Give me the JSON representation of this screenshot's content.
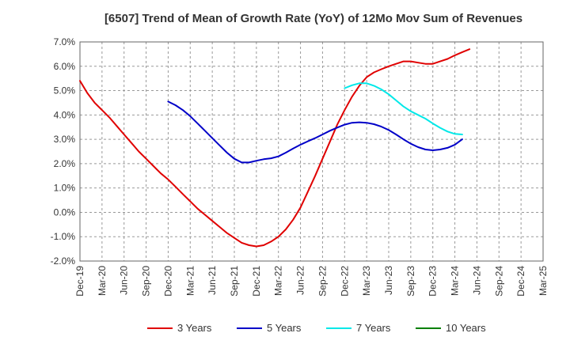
{
  "chart_data": {
    "type": "line",
    "title": "[6507]  Trend of Mean of Growth Rate (YoY) of 12Mo Mov Sum of Revenues",
    "xlabel": "",
    "ylabel": "",
    "ylim": [
      -2.0,
      7.0
    ],
    "yticks": [
      -2.0,
      -1.0,
      0.0,
      1.0,
      2.0,
      3.0,
      4.0,
      5.0,
      6.0,
      7.0
    ],
    "ytick_labels": [
      "-2.0%",
      "-1.0%",
      "0.0%",
      "1.0%",
      "2.0%",
      "3.0%",
      "4.0%",
      "5.0%",
      "6.0%",
      "7.0%"
    ],
    "x_range_months": [
      0,
      63
    ],
    "x_ticks": [
      {
        "m": 0,
        "label": "Dec-19"
      },
      {
        "m": 3,
        "label": "Mar-20"
      },
      {
        "m": 6,
        "label": "Jun-20"
      },
      {
        "m": 9,
        "label": "Sep-20"
      },
      {
        "m": 12,
        "label": "Dec-20"
      },
      {
        "m": 15,
        "label": "Mar-21"
      },
      {
        "m": 18,
        "label": "Jun-21"
      },
      {
        "m": 21,
        "label": "Sep-21"
      },
      {
        "m": 24,
        "label": "Dec-21"
      },
      {
        "m": 27,
        "label": "Mar-22"
      },
      {
        "m": 30,
        "label": "Jun-22"
      },
      {
        "m": 33,
        "label": "Sep-22"
      },
      {
        "m": 36,
        "label": "Dec-22"
      },
      {
        "m": 39,
        "label": "Mar-23"
      },
      {
        "m": 42,
        "label": "Jun-23"
      },
      {
        "m": 45,
        "label": "Sep-23"
      },
      {
        "m": 48,
        "label": "Dec-23"
      },
      {
        "m": 51,
        "label": "Mar-24"
      },
      {
        "m": 54,
        "label": "Jun-24"
      },
      {
        "m": 57,
        "label": "Sep-24"
      },
      {
        "m": 60,
        "label": "Dec-24"
      },
      {
        "m": 63,
        "label": "Mar-25"
      }
    ],
    "grid": true,
    "legend_position": "bottom",
    "series": [
      {
        "name": "3 Years",
        "color": "#e00000",
        "points": [
          [
            0,
            5.4
          ],
          [
            1,
            4.9
          ],
          [
            2,
            4.5
          ],
          [
            3,
            4.2
          ],
          [
            4,
            3.9
          ],
          [
            5,
            3.55
          ],
          [
            6,
            3.2
          ],
          [
            7,
            2.85
          ],
          [
            8,
            2.5
          ],
          [
            9,
            2.2
          ],
          [
            10,
            1.9
          ],
          [
            11,
            1.6
          ],
          [
            12,
            1.35
          ],
          [
            13,
            1.05
          ],
          [
            14,
            0.75
          ],
          [
            15,
            0.45
          ],
          [
            16,
            0.15
          ],
          [
            17,
            -0.1
          ],
          [
            18,
            -0.35
          ],
          [
            19,
            -0.6
          ],
          [
            20,
            -0.85
          ],
          [
            21,
            -1.05
          ],
          [
            22,
            -1.25
          ],
          [
            23,
            -1.35
          ],
          [
            24,
            -1.4
          ],
          [
            25,
            -1.35
          ],
          [
            26,
            -1.2
          ],
          [
            27,
            -1.0
          ],
          [
            28,
            -0.7
          ],
          [
            29,
            -0.3
          ],
          [
            30,
            0.2
          ],
          [
            31,
            0.85
          ],
          [
            32,
            1.5
          ],
          [
            33,
            2.2
          ],
          [
            34,
            2.9
          ],
          [
            35,
            3.6
          ],
          [
            36,
            4.2
          ],
          [
            37,
            4.75
          ],
          [
            38,
            5.2
          ],
          [
            39,
            5.55
          ],
          [
            40,
            5.75
          ],
          [
            41,
            5.88
          ],
          [
            42,
            6.0
          ],
          [
            43,
            6.1
          ],
          [
            44,
            6.2
          ],
          [
            45,
            6.2
          ],
          [
            46,
            6.15
          ],
          [
            47,
            6.1
          ],
          [
            48,
            6.1
          ],
          [
            49,
            6.2
          ],
          [
            50,
            6.3
          ],
          [
            51,
            6.45
          ],
          [
            52,
            6.58
          ],
          [
            53,
            6.7
          ]
        ]
      },
      {
        "name": "5 Years",
        "color": "#0000c8",
        "points": [
          [
            12,
            4.55
          ],
          [
            13,
            4.4
          ],
          [
            14,
            4.2
          ],
          [
            15,
            3.95
          ],
          [
            16,
            3.65
          ],
          [
            17,
            3.35
          ],
          [
            18,
            3.05
          ],
          [
            19,
            2.75
          ],
          [
            20,
            2.45
          ],
          [
            21,
            2.2
          ],
          [
            22,
            2.05
          ],
          [
            23,
            2.05
          ],
          [
            24,
            2.12
          ],
          [
            25,
            2.18
          ],
          [
            26,
            2.22
          ],
          [
            27,
            2.3
          ],
          [
            28,
            2.45
          ],
          [
            29,
            2.62
          ],
          [
            30,
            2.78
          ],
          [
            31,
            2.92
          ],
          [
            32,
            3.05
          ],
          [
            33,
            3.2
          ],
          [
            34,
            3.35
          ],
          [
            35,
            3.48
          ],
          [
            36,
            3.6
          ],
          [
            37,
            3.68
          ],
          [
            38,
            3.7
          ],
          [
            39,
            3.68
          ],
          [
            40,
            3.62
          ],
          [
            41,
            3.52
          ],
          [
            42,
            3.38
          ],
          [
            43,
            3.2
          ],
          [
            44,
            3.0
          ],
          [
            45,
            2.82
          ],
          [
            46,
            2.68
          ],
          [
            47,
            2.58
          ],
          [
            48,
            2.55
          ],
          [
            49,
            2.58
          ],
          [
            50,
            2.65
          ],
          [
            51,
            2.78
          ],
          [
            52,
            3.0
          ]
        ]
      },
      {
        "name": "7 Years",
        "color": "#00e8e8",
        "points": [
          [
            36,
            5.1
          ],
          [
            37,
            5.22
          ],
          [
            38,
            5.3
          ],
          [
            39,
            5.3
          ],
          [
            40,
            5.2
          ],
          [
            41,
            5.05
          ],
          [
            42,
            4.85
          ],
          [
            43,
            4.6
          ],
          [
            44,
            4.35
          ],
          [
            45,
            4.15
          ],
          [
            46,
            4.0
          ],
          [
            47,
            3.85
          ],
          [
            48,
            3.65
          ],
          [
            49,
            3.47
          ],
          [
            50,
            3.32
          ],
          [
            51,
            3.22
          ],
          [
            52,
            3.2
          ]
        ]
      },
      {
        "name": "10 Years",
        "color": "#008000",
        "points": []
      }
    ]
  }
}
